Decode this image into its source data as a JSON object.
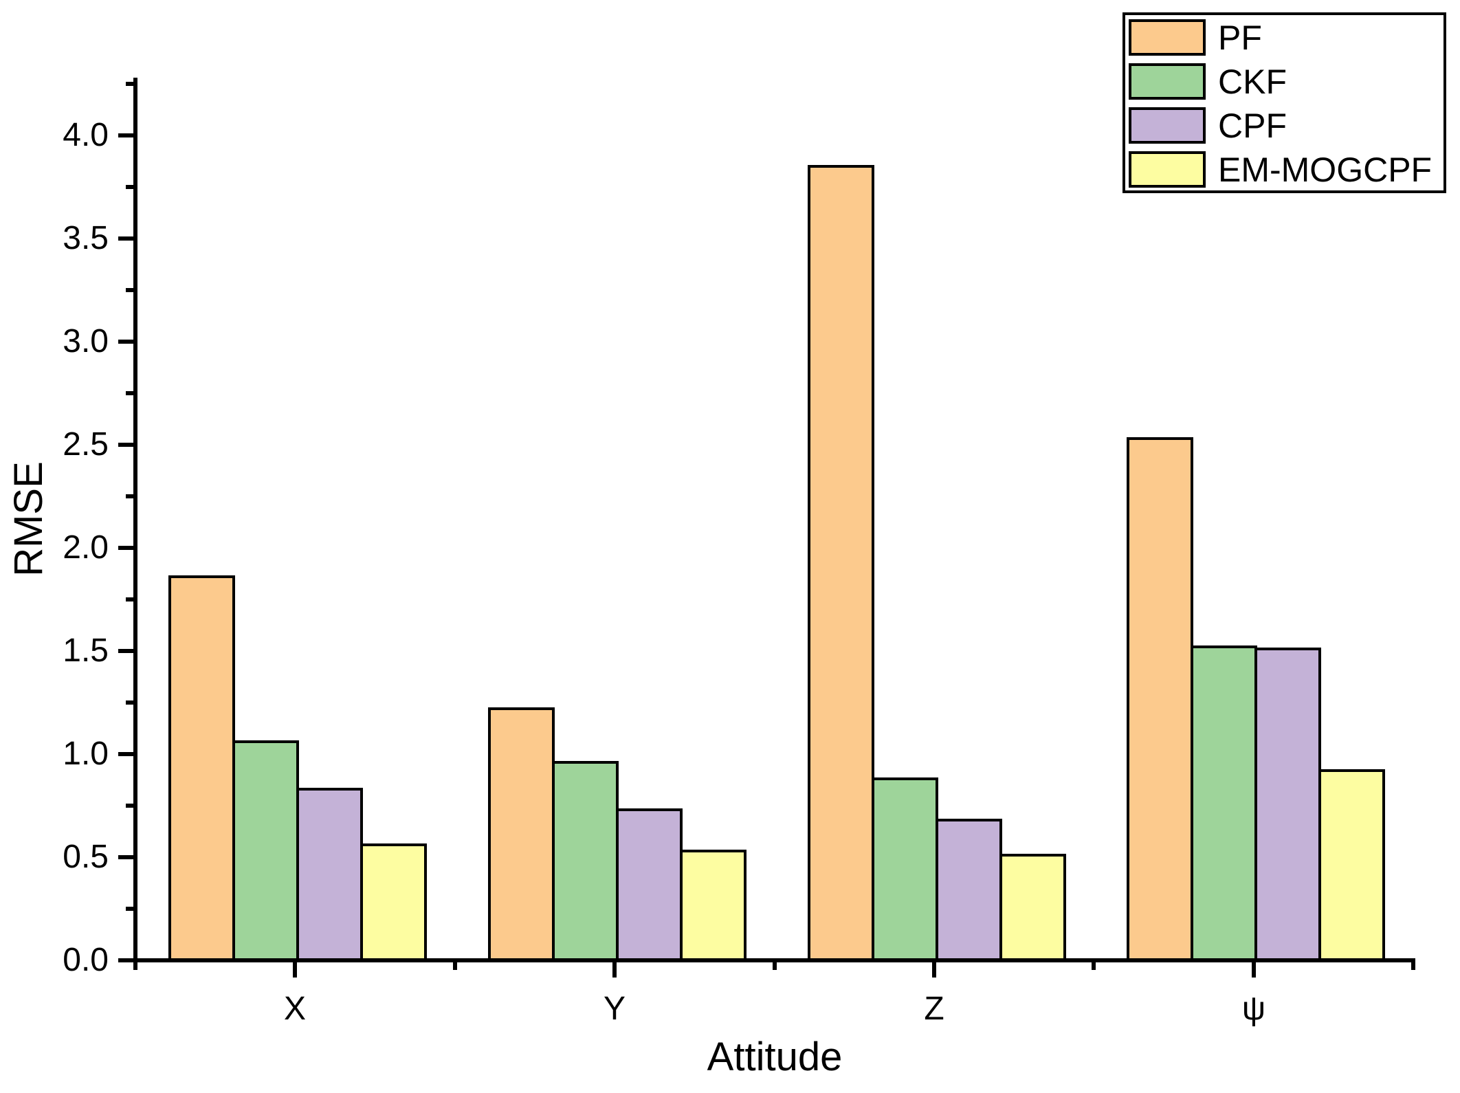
{
  "chart_data": {
    "type": "bar",
    "title": "",
    "xlabel": "Attitude",
    "ylabel": "RMSE",
    "categories": [
      "X",
      "Y",
      "Z",
      "ψ"
    ],
    "series": [
      {
        "name": "PF",
        "color": "#FCCA8D",
        "values": [
          1.86,
          1.22,
          3.85,
          2.53
        ]
      },
      {
        "name": "CKF",
        "color": "#9ED49A",
        "values": [
          1.06,
          0.96,
          0.88,
          1.52
        ]
      },
      {
        "name": "CPF",
        "color": "#C4B2D7",
        "values": [
          0.83,
          0.73,
          0.68,
          1.51
        ]
      },
      {
        "name": "EM-MOGCPF",
        "color": "#FDFDA1",
        "values": [
          0.56,
          0.53,
          0.51,
          0.92
        ]
      }
    ],
    "bar_border_color": "#000000",
    "axis_color": "#000000",
    "background_color": "#FFFFFF",
    "ylim": [
      0,
      4.28
    ],
    "y_major_tick_labels": [
      "0.0",
      "0.5",
      "1.0",
      "1.5",
      "2.0",
      "2.5",
      "3.0",
      "3.5",
      "4.0"
    ],
    "y_major_step": 0.5,
    "y_minor_step": 0.25,
    "grid": false,
    "legend_position": "top-right",
    "legend": [
      "PF",
      "CKF",
      "CPF",
      "EM-MOGCPF"
    ]
  }
}
